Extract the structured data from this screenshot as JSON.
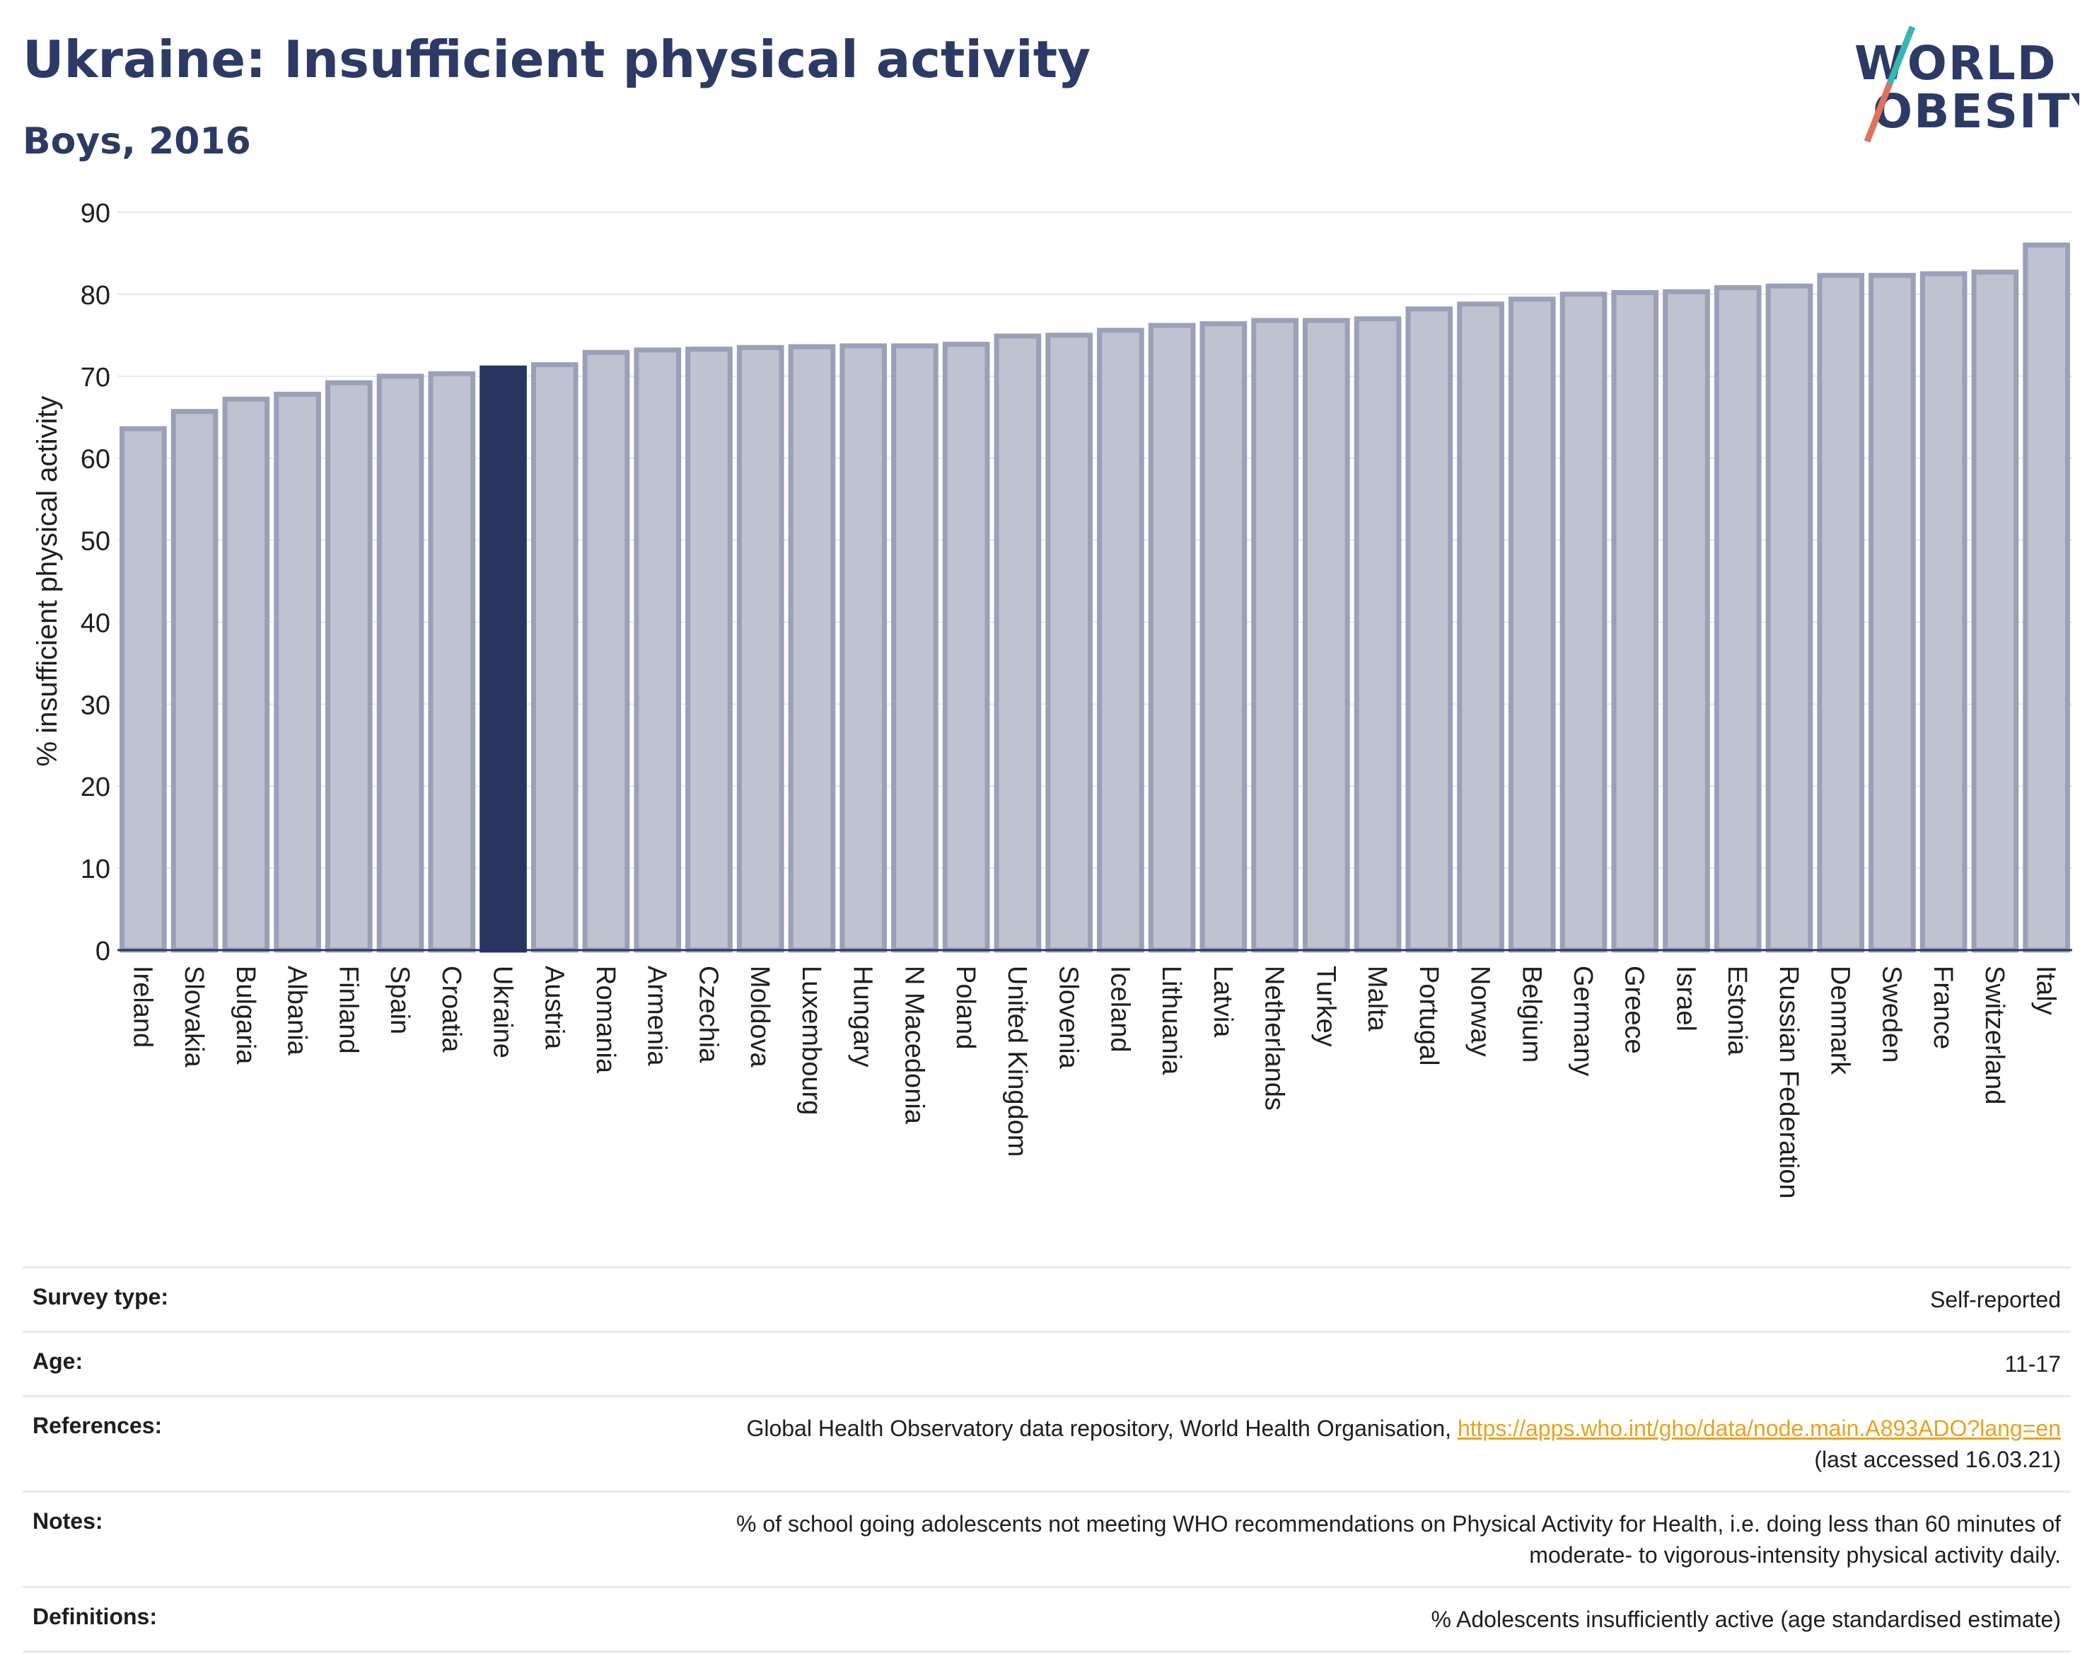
{
  "header": {
    "title": "Ukraine: Insufficient physical activity",
    "subtitle": "Boys, 2016"
  },
  "logo": {
    "line1": "WORLD",
    "line2": "OBESITY"
  },
  "chart_data": {
    "type": "bar",
    "ylabel": "% insufficient physical activity",
    "ylim": [
      0,
      90
    ],
    "yticks": [
      0,
      10,
      20,
      30,
      40,
      50,
      60,
      70,
      80,
      90
    ],
    "highlight": "Ukraine",
    "colors": {
      "bar": "#bfc2d0",
      "bar_edge": "#9aa0b8",
      "highlight": "#2a3460"
    },
    "categories": [
      "Ireland",
      "Slovakia",
      "Bulgaria",
      "Albania",
      "Finland",
      "Spain",
      "Croatia",
      "Ukraine",
      "Austria",
      "Romania",
      "Armenia",
      "Czechia",
      "Moldova",
      "Luxembourg",
      "Hungary",
      "N Macedonia",
      "Poland",
      "United Kingdom",
      "Slovenia",
      "Iceland",
      "Lithuania",
      "Latvia",
      "Netherlands",
      "Turkey",
      "Malta",
      "Portugal",
      "Norway",
      "Belgium",
      "Germany",
      "Greece",
      "Israel",
      "Estonia",
      "Russian Federation",
      "Denmark",
      "Sweden",
      "France",
      "Switzerland",
      "Italy"
    ],
    "values": [
      63.6,
      65.7,
      67.2,
      67.8,
      69.2,
      70.0,
      70.3,
      71.0,
      71.4,
      72.9,
      73.2,
      73.3,
      73.5,
      73.6,
      73.7,
      73.7,
      73.9,
      74.9,
      75.0,
      75.6,
      76.2,
      76.4,
      76.8,
      76.8,
      77.0,
      78.2,
      78.8,
      79.4,
      80.0,
      80.2,
      80.3,
      80.8,
      81.0,
      82.3,
      82.3,
      82.5,
      82.7,
      86.0
    ]
  },
  "meta": {
    "survey_label": "Survey type:",
    "survey_value": "Self-reported",
    "age_label": "Age:",
    "age_value": "11-17",
    "ref_label": "References:",
    "ref_text": "Global Health Observatory data repository, World Health Organisation,",
    "ref_link": "https://apps.who.int/gho/data/node.main.A893ADO?lang=en",
    "ref_accessed": "(last accessed 16.03.21)",
    "notes_label": "Notes:",
    "notes_line1": "% of school going adolescents not meeting WHO recommendations on Physical Activity for Health, i.e. doing less than 60 minutes of",
    "notes_line2": "moderate- to vigorous-intensity physical activity daily.",
    "def_label": "Definitions:",
    "def_value": "% Adolescents insufficiently active (age standardised estimate)"
  }
}
